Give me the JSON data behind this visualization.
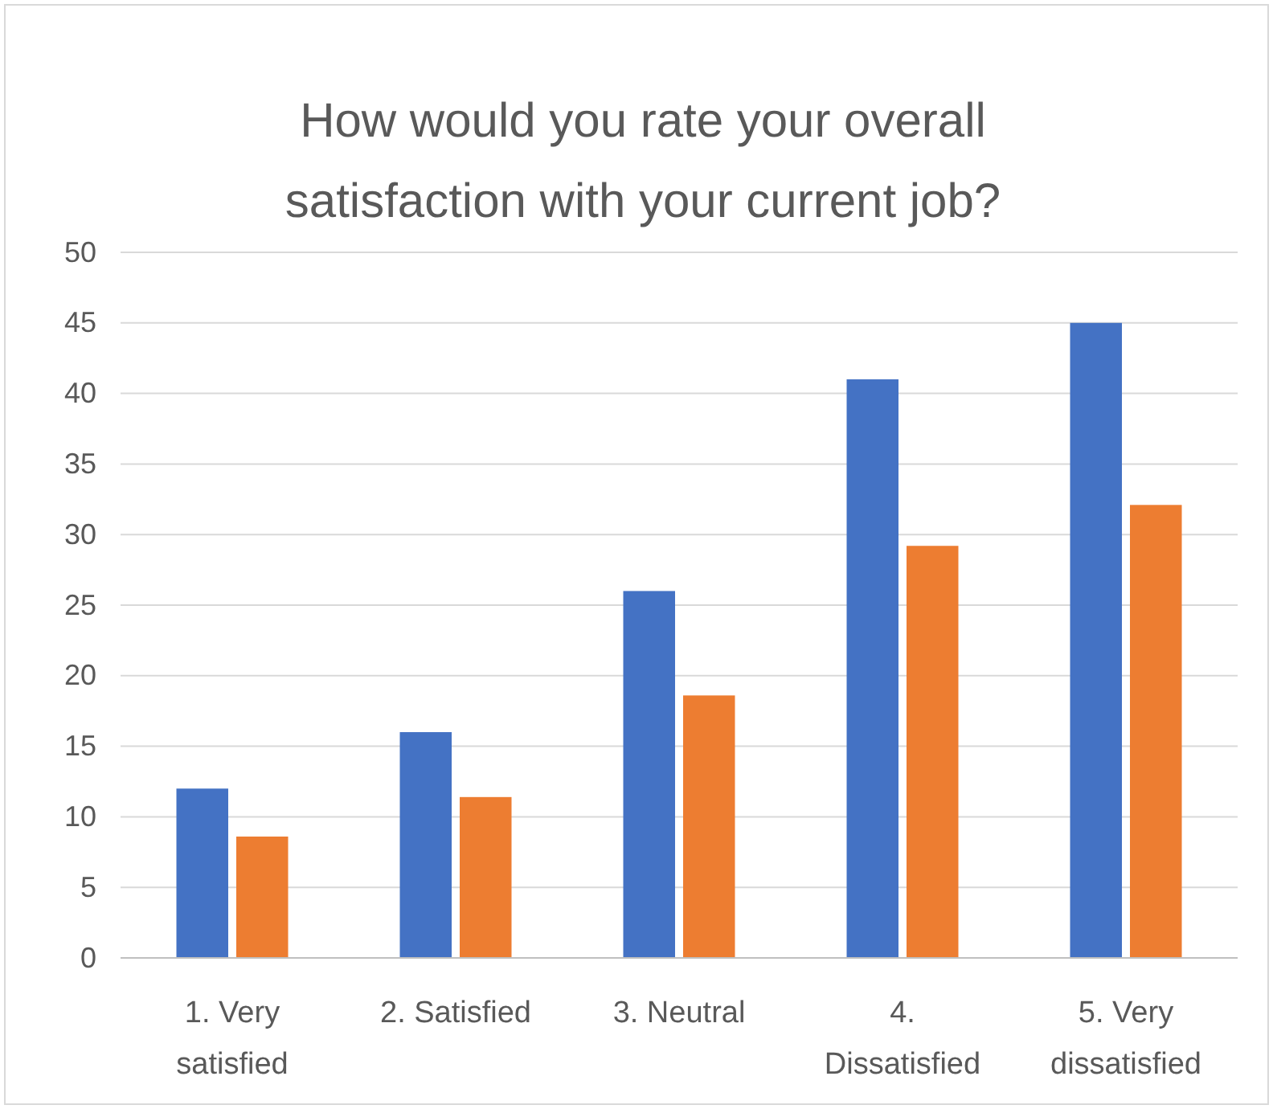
{
  "chart_data": {
    "type": "bar",
    "title": "How would you rate your overall satisfaction with your current job?",
    "categories": [
      "1. Very satisfied",
      "2. Satisfied",
      "3. Neutral",
      "4. Dissatisfied",
      "5. Very dissatisfied"
    ],
    "series": [
      {
        "color": "#4472c4",
        "values": [
          12,
          16,
          26,
          41,
          45
        ]
      },
      {
        "color": "#ed7d31",
        "values": [
          8.6,
          11.4,
          18.6,
          29.2,
          32.1
        ]
      }
    ],
    "ylim": [
      0,
      50
    ],
    "yticks": [
      0,
      5,
      10,
      15,
      20,
      25,
      30,
      35,
      40,
      45,
      50
    ],
    "grid": "y"
  }
}
